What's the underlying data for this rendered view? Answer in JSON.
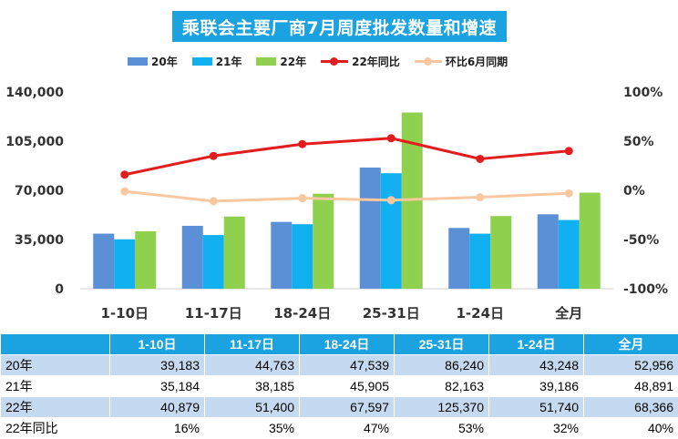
{
  "title": "乘联会主要厂商7月周度批发数量和增速",
  "legend": [
    {
      "label": "20年",
      "kind": "bar",
      "color": "#5b8fd6"
    },
    {
      "label": "21年",
      "kind": "bar",
      "color": "#11b0f0"
    },
    {
      "label": "22年",
      "kind": "bar",
      "color": "#8fd04f"
    },
    {
      "label": "22年同比",
      "kind": "line",
      "color": "#e21d1d"
    },
    {
      "label": "环比6月同期",
      "kind": "line",
      "color": "#f9c8a0"
    }
  ],
  "chart_data": {
    "type": "bar",
    "title": "乘联会主要厂商7月周度批发数量和增速",
    "categories": [
      "1-10日",
      "11-17日",
      "18-24日",
      "25-31日",
      "1-24日",
      "全月"
    ],
    "series": [
      {
        "name": "20年",
        "values": [
          39183,
          44763,
          47539,
          86240,
          43248,
          52956
        ],
        "color": "#5b8fd6"
      },
      {
        "name": "21年",
        "values": [
          35184,
          38185,
          45905,
          82163,
          39186,
          48891
        ],
        "color": "#11b0f0"
      },
      {
        "name": "22年",
        "values": [
          40879,
          51400,
          67597,
          125370,
          51740,
          68366
        ],
        "color": "#8fd04f"
      }
    ],
    "line_series": [
      {
        "name": "22年同比",
        "values": [
          16,
          35,
          47,
          53,
          32,
          40
        ],
        "color": "#e21d1d",
        "axis": "right"
      },
      {
        "name": "环比6月同期",
        "values": [
          -1,
          -11,
          -8,
          -10,
          -7,
          -3
        ],
        "color": "#f9c8a0",
        "axis": "right"
      }
    ],
    "left_axis": {
      "min": 0,
      "max": 140000,
      "ticks": [
        0,
        35000,
        70000,
        105000,
        140000
      ],
      "tick_labels": [
        "0",
        "35,000",
        "70,000",
        "105,000",
        "140,000"
      ]
    },
    "right_axis": {
      "min": -100,
      "max": 100,
      "ticks": [
        -100,
        -50,
        0,
        50,
        100
      ],
      "tick_labels": [
        "-100%",
        "-50%",
        "0%",
        "50%",
        "100%"
      ]
    },
    "grid": false,
    "legend_position": "top"
  },
  "table": {
    "headers": [
      "",
      "1-10日",
      "11-17日",
      "18-24日",
      "25-31日",
      "1-24日",
      "全月"
    ],
    "rows": [
      {
        "label": "20年",
        "cells": [
          "39,183",
          "44,763",
          "47,539",
          "86,240",
          "43,248",
          "52,956"
        ]
      },
      {
        "label": "21年",
        "cells": [
          "35,184",
          "38,185",
          "45,905",
          "82,163",
          "39,186",
          "48,891"
        ]
      },
      {
        "label": "22年",
        "cells": [
          "40,879",
          "51,400",
          "67,597",
          "125,370",
          "51,740",
          "68,366"
        ]
      },
      {
        "label": "22年同比",
        "cells": [
          "16%",
          "35%",
          "47%",
          "53%",
          "32%",
          "40%"
        ]
      }
    ]
  }
}
